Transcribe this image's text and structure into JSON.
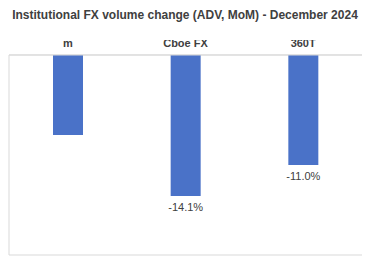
{
  "chart_data": {
    "type": "bar",
    "title": "Institutional FX volume change (ADV, MoM) - December 2024",
    "categories": [
      "m",
      "Cboe FX",
      "360T"
    ],
    "values": [
      -8.0,
      -14.1,
      -11.0
    ],
    "value_labels": [
      null,
      "-14.1%",
      "-11.0%"
    ],
    "color": "#4a72c8",
    "ylim": [
      -20,
      0
    ],
    "yticks": [
      -20,
      -18,
      -16,
      -14,
      -12,
      -10,
      -8,
      -6,
      -4,
      -2,
      0
    ],
    "grid": true,
    "data_labels": true,
    "tick_labels": "x"
  }
}
